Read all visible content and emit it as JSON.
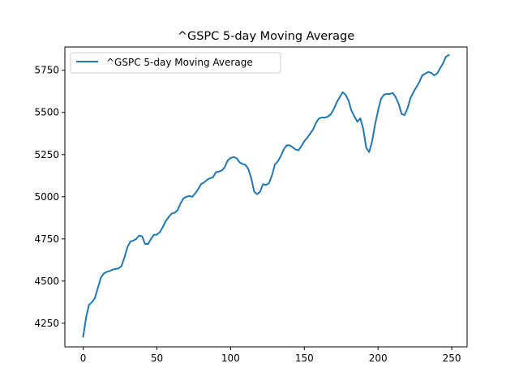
{
  "chart_data": {
    "type": "line",
    "title": "^GSPC 5-day Moving Average",
    "xlabel": "",
    "ylabel": "",
    "xlim": [
      -12.4,
      260.4
    ],
    "ylim": [
      4110,
      5888
    ],
    "xticks": [
      0,
      50,
      100,
      150,
      200,
      250
    ],
    "yticks": [
      4250,
      4500,
      4750,
      5000,
      5250,
      5500,
      5750
    ],
    "grid": false,
    "legend_position": "upper-left",
    "colors": {
      "series": "#1f77b4",
      "axes": "#000000",
      "background": "#ffffff"
    },
    "series": [
      {
        "name": "^GSPC 5-day Moving Average",
        "x": [
          0,
          2,
          4,
          6,
          8,
          10,
          12,
          14,
          16,
          18,
          20,
          22,
          24,
          26,
          28,
          30,
          32,
          34,
          36,
          38,
          40,
          42,
          44,
          46,
          48,
          50,
          52,
          54,
          56,
          58,
          60,
          62,
          64,
          66,
          68,
          70,
          72,
          74,
          76,
          78,
          80,
          82,
          84,
          86,
          88,
          90,
          92,
          94,
          96,
          98,
          100,
          102,
          104,
          106,
          108,
          110,
          112,
          114,
          116,
          118,
          120,
          122,
          124,
          126,
          128,
          130,
          132,
          134,
          136,
          138,
          140,
          142,
          144,
          146,
          148,
          150,
          152,
          154,
          156,
          158,
          160,
          162,
          164,
          166,
          168,
          170,
          172,
          174,
          176,
          178,
          180,
          182,
          184,
          186,
          188,
          190,
          192,
          194,
          196,
          198,
          200,
          202,
          204,
          206,
          208,
          210,
          212,
          214,
          216,
          218,
          220,
          222,
          224,
          226,
          228,
          230,
          232,
          234,
          236,
          238,
          240,
          242,
          244,
          246,
          248
        ],
        "values": [
          4170,
          4285,
          4360,
          4375,
          4400,
          4460,
          4520,
          4545,
          4555,
          4560,
          4568,
          4572,
          4575,
          4590,
          4640,
          4700,
          4735,
          4740,
          4750,
          4770,
          4765,
          4720,
          4720,
          4750,
          4775,
          4775,
          4790,
          4820,
          4855,
          4880,
          4900,
          4905,
          4920,
          4960,
          4990,
          5000,
          5005,
          5000,
          5020,
          5045,
          5075,
          5085,
          5100,
          5110,
          5115,
          5145,
          5150,
          5155,
          5175,
          5215,
          5230,
          5235,
          5230,
          5205,
          5195,
          5190,
          5165,
          5110,
          5030,
          5015,
          5030,
          5075,
          5070,
          5080,
          5125,
          5190,
          5210,
          5240,
          5280,
          5305,
          5305,
          5295,
          5280,
          5275,
          5300,
          5330,
          5350,
          5375,
          5400,
          5440,
          5465,
          5470,
          5470,
          5475,
          5490,
          5520,
          5560,
          5590,
          5620,
          5605,
          5570,
          5510,
          5475,
          5445,
          5465,
          5400,
          5290,
          5265,
          5330,
          5430,
          5510,
          5580,
          5605,
          5610,
          5610,
          5615,
          5590,
          5550,
          5490,
          5485,
          5525,
          5585,
          5620,
          5650,
          5680,
          5720,
          5730,
          5740,
          5735,
          5720,
          5730,
          5760,
          5790,
          5830,
          5840
        ]
      }
    ]
  }
}
